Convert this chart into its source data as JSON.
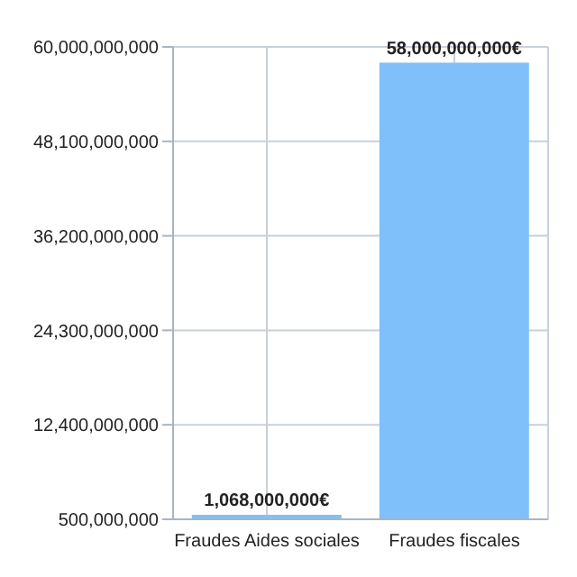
{
  "chart_data": {
    "type": "bar",
    "categories": [
      "Fraudes Aides sociales",
      "Fraudes fiscales"
    ],
    "values": [
      1068000000,
      58000000000
    ],
    "color": "#80c0fa",
    "value_labels": [
      "1,068,000,000€",
      "58,000,000,000€"
    ],
    "ylim": [
      500000000,
      60000000000
    ],
    "yticks": [
      {
        "value": 500000000,
        "label": "500,000,000"
      },
      {
        "value": 12400000000,
        "label": "12,400,000,000"
      },
      {
        "value": 24300000000,
        "label": "24,300,000,000"
      },
      {
        "value": 36200000000,
        "label": "36,200,000,000"
      },
      {
        "value": 48100000000,
        "label": "48,100,000,000"
      },
      {
        "value": 60000000000,
        "label": "60,000,000,000"
      }
    ],
    "grid": true
  }
}
